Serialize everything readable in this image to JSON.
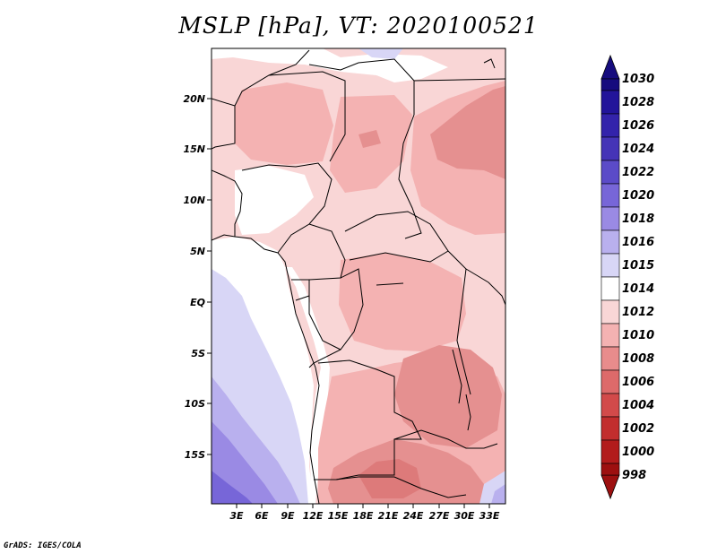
{
  "title": "MSLP [hPa], VT: 2020100521",
  "credit": "GrADS: IGES/COLA",
  "lat_labels": [
    "20N",
    "15N",
    "10N",
    "5N",
    "EQ",
    "5S",
    "10S",
    "15S"
  ],
  "lon_labels": [
    "3E",
    "6E",
    "9E",
    "12E",
    "15E",
    "18E",
    "21E",
    "24E",
    "27E",
    "30E",
    "33E"
  ],
  "colorbar": {
    "levels": [
      "1030",
      "1028",
      "1026",
      "1024",
      "1022",
      "1020",
      "1018",
      "1016",
      "1015",
      "1014",
      "1012",
      "1010",
      "1008",
      "1006",
      "1004",
      "1002",
      "1000",
      "998"
    ],
    "colors": [
      "#160c7e",
      "#22149a",
      "#3323ab",
      "#4534b7",
      "#5b4bc8",
      "#7766d8",
      "#9a8ae4",
      "#b9b0ee",
      "#d8d6f6",
      "#ffffff",
      "#f9d6d6",
      "#f4b2b2",
      "#e88c8c",
      "#dd6a6a",
      "#d24a4a",
      "#c22e2e",
      "#b21c1c",
      "#9d1010"
    ]
  },
  "palette": {
    "land_light": "#f9d6d6",
    "land_mid": "#f4b2b2",
    "land_dark": "#e59090",
    "ocean_white": "#ffffff",
    "ocean_lavender": "#d8d6f6",
    "ocean_blue": "#b9b0ee",
    "ocean_deep": "#9a8ae4",
    "ocean_deepest": "#7766d8",
    "border": "#000000"
  }
}
